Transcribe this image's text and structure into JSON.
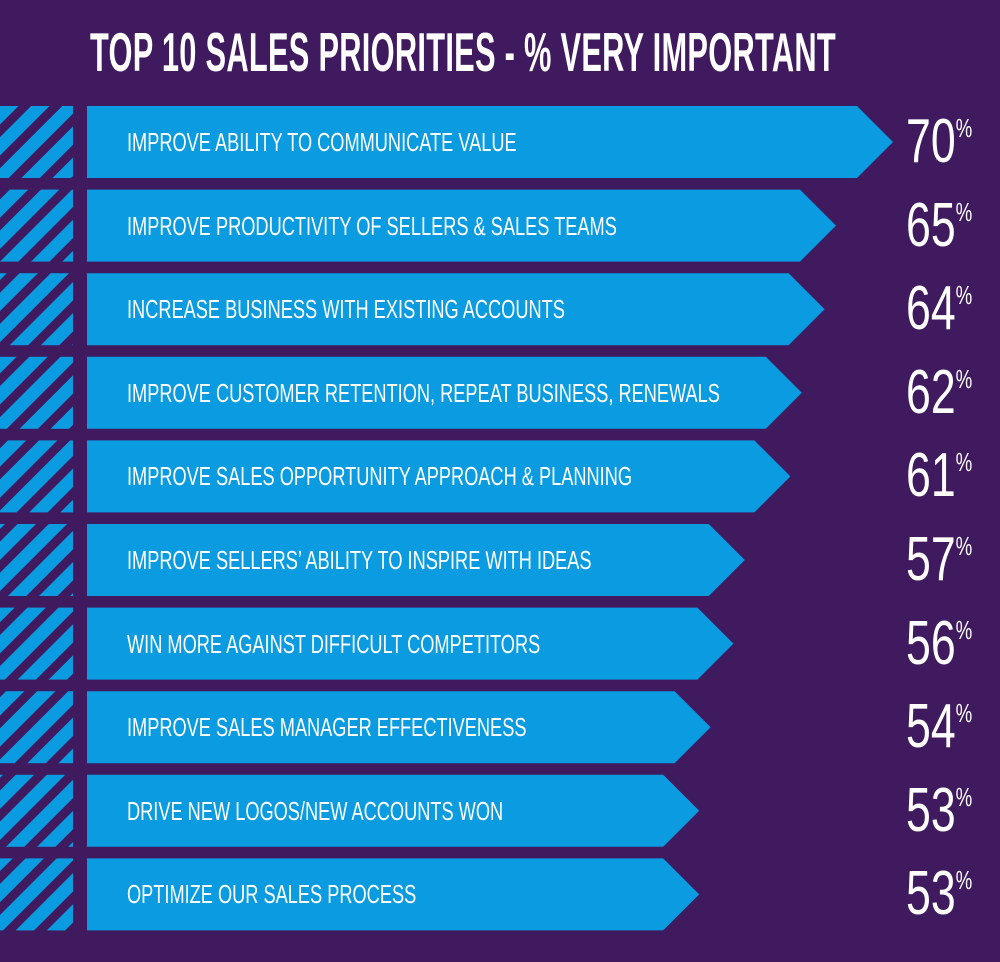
{
  "colors": {
    "background": "#3f1a5f",
    "bar": "#0a9be0",
    "text": "#ffffff"
  },
  "chart_data": {
    "type": "bar",
    "orientation": "horizontal",
    "title": "TOP 10 SALES PRIORITIES - % VERY IMPORTANT",
    "categories": [
      "IMPROVE ABILITY TO COMMUNICATE VALUE",
      "IMPROVE PRODUCTIVITY OF SELLERS & SALES TEAMS",
      "INCREASE BUSINESS WITH EXISTING ACCOUNTS",
      "IMPROVE CUSTOMER RETENTION, REPEAT BUSINESS, RENEWALS",
      "IMPROVE SALES OPPORTUNITY APPROACH & PLANNING",
      "IMPROVE SELLERS’ ABILITY TO INSPIRE WITH IDEAS",
      "WIN MORE AGAINST DIFFICULT COMPETITORS",
      "IMPROVE SALES MANAGER EFFECTIVENESS",
      "DRIVE NEW LOGOS/NEW ACCOUNTS WON",
      "OPTIMIZE OUR SALES PROCESS"
    ],
    "values": [
      70,
      65,
      64,
      62,
      61,
      57,
      56,
      54,
      53,
      53
    ],
    "value_suffix": "%",
    "grid": false,
    "legend": "none"
  }
}
